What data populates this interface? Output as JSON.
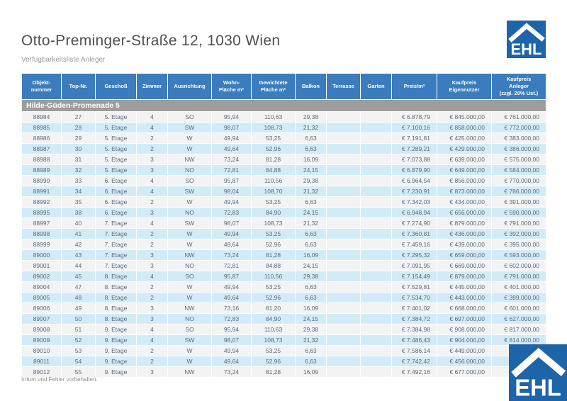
{
  "page": {
    "title": "Otto-Preminger-Straße 12, 1030 Wien",
    "subtitle": "Verfügbarkeitsliste Anleger",
    "footer": "Irrtum und Fehler vorbehalten."
  },
  "logo": {
    "text": "EHL"
  },
  "colors": {
    "header_blue": "#3b7cbe",
    "stripe_blue": "#d2ebf8",
    "row_gray": "#f3f3f3",
    "band_gray": "#9d9d9d",
    "logo_blue": "#1d64a8"
  },
  "table": {
    "group_header": "Hilde-Güden-Promenade 5",
    "columns": [
      "Objekt-\nnummer",
      "Top-Nr.",
      "Geschoß",
      "Zimmer",
      "Ausrichtung",
      "Wohn-\nFläche m²",
      "Gewichtete\nFläche m²",
      "Balkon",
      "Terrasse",
      "Garten",
      "Preis/m²",
      "Kaufpreis\nEigennutzer",
      "Kaufpreis\nAnleger\n(zzgl. 20% Ust.)"
    ],
    "rows": [
      [
        "88984",
        "27",
        "5. Etage",
        "4",
        "SO",
        "95,94",
        "110,63",
        "29,38",
        "",
        "",
        "€ 6.878,79",
        "€ 845.000,00",
        "€ 761.000,00"
      ],
      [
        "88985",
        "28",
        "5. Etage",
        "4",
        "SW",
        "98,07",
        "108,73",
        "21,32",
        "",
        "",
        "€ 7.100,16",
        "€ 858.000,00",
        "€ 772.000,00"
      ],
      [
        "88986",
        "29",
        "5. Etage",
        "2",
        "W",
        "49,94",
        "53,25",
        "6,63",
        "",
        "",
        "€ 7.191,81",
        "€ 425.000,00",
        "€ 383.000,00"
      ],
      [
        "88987",
        "30",
        "5. Etage",
        "2",
        "W",
        "49,64",
        "52,96",
        "6,63",
        "",
        "",
        "€ 7.289,21",
        "€ 429.000,00",
        "€ 386.000,00"
      ],
      [
        "88988",
        "31",
        "5. Etage",
        "3",
        "NW",
        "73,24",
        "81,28",
        "16,09",
        "",
        "",
        "€ 7.073,88",
        "€ 639.000,00",
        "€ 575.000,00"
      ],
      [
        "88989",
        "32",
        "5. Etage",
        "3",
        "NO",
        "72,81",
        "84,88",
        "24,15",
        "",
        "",
        "€ 6.879,90",
        "€ 649.000,00",
        "€ 584.000,00"
      ],
      [
        "88990",
        "33",
        "6. Etage",
        "4",
        "SO",
        "95,87",
        "110,56",
        "29,38",
        "",
        "",
        "€ 6.964,54",
        "€ 856.000,00",
        "€ 770.000,00"
      ],
      [
        "88991",
        "34",
        "6. Etage",
        "4",
        "SW",
        "98,04",
        "108,70",
        "21,32",
        "",
        "",
        "€ 7.230,91",
        "€ 873.000,00",
        "€ 786.000,00"
      ],
      [
        "88992",
        "35",
        "6. Etage",
        "2",
        "W",
        "49,94",
        "53,25",
        "6,63",
        "",
        "",
        "€ 7.342,03",
        "€ 434.000,00",
        "€ 391.000,00"
      ],
      [
        "88995",
        "38",
        "6. Etage",
        "3",
        "NO",
        "72,83",
        "84,90",
        "24,15",
        "",
        "",
        "€ 6.948,94",
        "€ 656.000,00",
        "€ 590.000,00"
      ],
      [
        "88997",
        "40",
        "7. Etage",
        "4",
        "SW",
        "98,07",
        "108,73",
        "21,32",
        "",
        "",
        "€ 7.274,90",
        "€ 879.000,00",
        "€ 791.000,00"
      ],
      [
        "88998",
        "41",
        "7. Etage",
        "2",
        "W",
        "49,94",
        "53,25",
        "6,63",
        "",
        "",
        "€ 7.360,81",
        "€ 436.000,00",
        "€ 392.000,00"
      ],
      [
        "88999",
        "42",
        "7. Etage",
        "2",
        "W",
        "49,64",
        "52,96",
        "6,63",
        "",
        "",
        "€ 7.459,16",
        "€ 439.000,00",
        "€ 395.000,00"
      ],
      [
        "89000",
        "43",
        "7. Etage",
        "3",
        "NW",
        "73,24",
        "81,28",
        "16,09",
        "",
        "",
        "€ 7.295,32",
        "€ 659.000,00",
        "€ 593.000,00"
      ],
      [
        "89001",
        "44",
        "7. Etage",
        "3",
        "NO",
        "72,81",
        "84,88",
        "24,15",
        "",
        "",
        "€ 7.091,95",
        "€ 669.000,00",
        "€ 602.000,00"
      ],
      [
        "89002",
        "45",
        "8. Etage",
        "4",
        "SO",
        "95,87",
        "110,56",
        "29,38",
        "",
        "",
        "€ 7.154,49",
        "€ 879.000,00",
        "€ 791.000,00"
      ],
      [
        "89004",
        "47",
        "8. Etage",
        "2",
        "W",
        "49,94",
        "53,25",
        "6,63",
        "",
        "",
        "€ 7.529,81",
        "€ 445.000,00",
        "€ 401.000,00"
      ],
      [
        "89005",
        "48",
        "8. Etage",
        "2",
        "W",
        "49,64",
        "52,96",
        "6,63",
        "",
        "",
        "€ 7.534,70",
        "€ 443.000,00",
        "€ 399.000,00"
      ],
      [
        "89006",
        "49",
        "8. Etage",
        "3",
        "NW",
        "73,16",
        "81,20",
        "16,09",
        "",
        "",
        "€ 7.401,02",
        "€ 668.000,00",
        "€ 601.000,00"
      ],
      [
        "89007",
        "50",
        "8. Etage",
        "3",
        "NO",
        "72,83",
        "84,90",
        "24,15",
        "",
        "",
        "€ 7.384,72",
        "€ 697.000,00",
        "€ 627.000,00"
      ],
      [
        "89008",
        "51",
        "9. Etage",
        "4",
        "SO",
        "95,94",
        "110,63",
        "29,38",
        "",
        "",
        "€ 7.384,98",
        "€ 908.000,00",
        "€ 817.000,00"
      ],
      [
        "89009",
        "52",
        "9. Etage",
        "4",
        "SW",
        "98,07",
        "108,73",
        "21,32",
        "",
        "",
        "€ 7.486,43",
        "€ 904.000,00",
        "€ 814.000,00"
      ],
      [
        "89010",
        "53",
        "9. Etage",
        "2",
        "W",
        "49,94",
        "53,25",
        "6,63",
        "",
        "",
        "€ 7.586,14",
        "€ 449.000,00",
        "€"
      ],
      [
        "89011",
        "54",
        "9. Etage",
        "2",
        "W",
        "49,64",
        "52,96",
        "6,63",
        "",
        "",
        "€ 7.742,42",
        "€ 456.000,00",
        "€"
      ],
      [
        "89012",
        "55",
        "9. Etage",
        "3",
        "NW",
        "73,24",
        "81,28",
        "16,09",
        "",
        "",
        "€ 7.492,16",
        "€ 677.000,00",
        "€"
      ]
    ]
  }
}
